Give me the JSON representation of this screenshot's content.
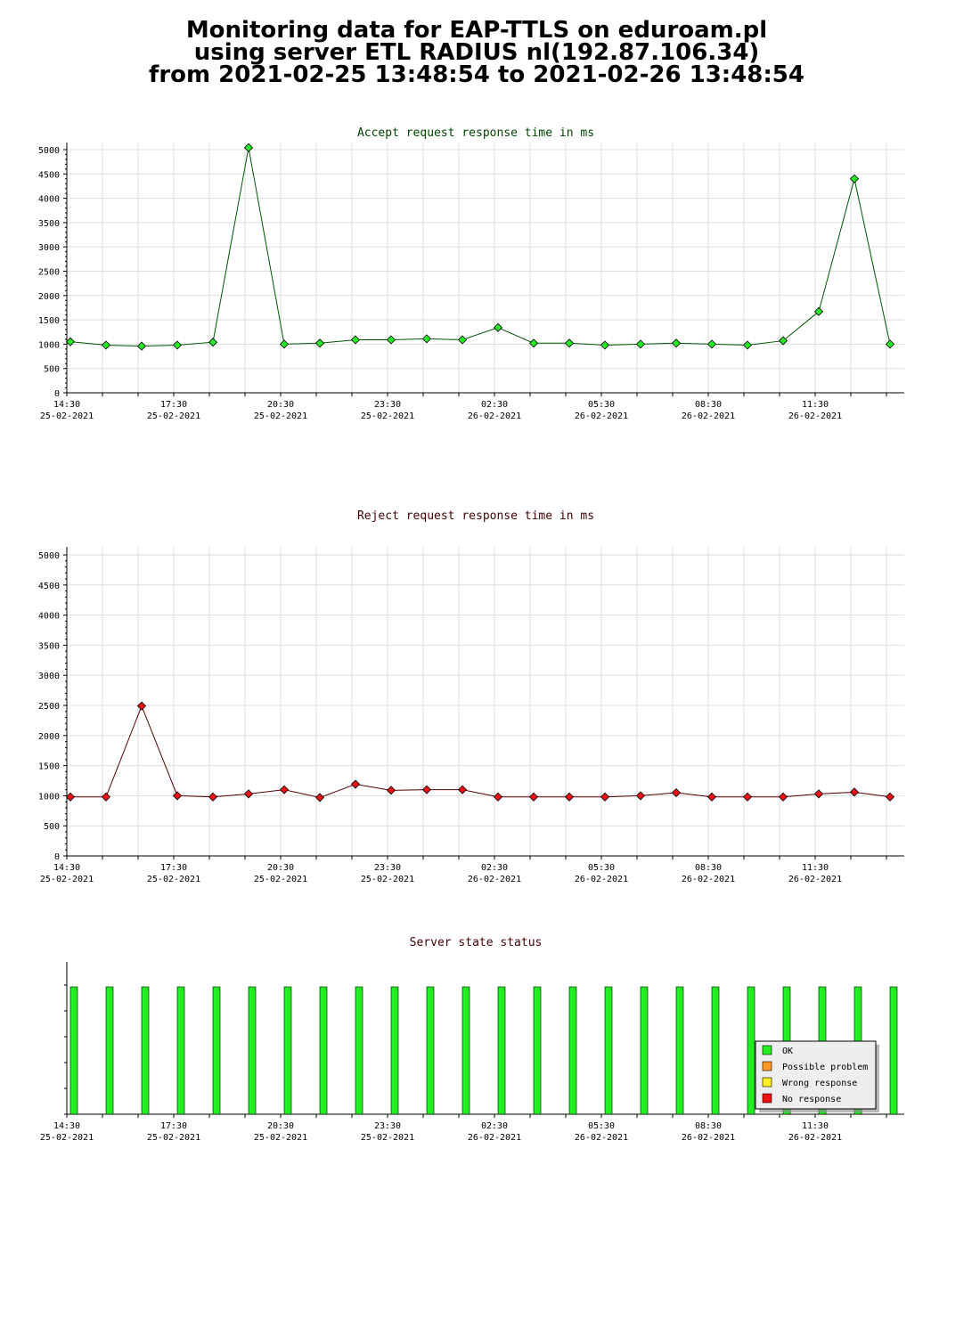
{
  "page": {
    "title_lines": [
      "Monitoring data for EAP-TTLS on eduroam.pl",
      "using server ETL RADIUS nl(192.87.106.34)",
      "from 2021-02-25 13:48:54 to 2021-02-26 13:48:54"
    ]
  },
  "chart_data": [
    {
      "type": "line",
      "title": "Accept request response time in ms",
      "title_color": "#004400",
      "line_color": "#005500",
      "marker_color": "#22ee22",
      "ylim": [
        0,
        5000
      ],
      "yticks": [
        0,
        500,
        1000,
        1500,
        2000,
        2500,
        3000,
        3500,
        4000,
        4500,
        5000
      ],
      "grid": true,
      "x_tick_labels": [
        {
          "time": "14:30",
          "date": "25-02-2021"
        },
        {
          "time": "17:30",
          "date": "25-02-2021"
        },
        {
          "time": "20:30",
          "date": "25-02-2021"
        },
        {
          "time": "23:30",
          "date": "25-02-2021"
        },
        {
          "time": "02:30",
          "date": "26-02-2021"
        },
        {
          "time": "05:30",
          "date": "26-02-2021"
        },
        {
          "time": "08:30",
          "date": "26-02-2021"
        },
        {
          "time": "11:30",
          "date": "26-02-2021"
        }
      ],
      "values": [
        1050,
        980,
        960,
        980,
        1040,
        5040,
        1000,
        1020,
        1090,
        1090,
        1110,
        1090,
        1340,
        1020,
        1020,
        980,
        1000,
        1020,
        1000,
        980,
        1070,
        1670,
        4400,
        1000
      ]
    },
    {
      "type": "line",
      "title": "Reject request response time in ms",
      "title_color": "#440000",
      "line_color": "#550000",
      "marker_color": "#ee1111",
      "ylim": [
        0,
        5000
      ],
      "yticks": [
        0,
        500,
        1000,
        1500,
        2000,
        2500,
        3000,
        3500,
        4000,
        4500,
        5000
      ],
      "grid": true,
      "x_tick_labels": [
        {
          "time": "14:30",
          "date": "25-02-2021"
        },
        {
          "time": "17:30",
          "date": "25-02-2021"
        },
        {
          "time": "20:30",
          "date": "25-02-2021"
        },
        {
          "time": "23:30",
          "date": "25-02-2021"
        },
        {
          "time": "02:30",
          "date": "26-02-2021"
        },
        {
          "time": "05:30",
          "date": "26-02-2021"
        },
        {
          "time": "08:30",
          "date": "26-02-2021"
        },
        {
          "time": "11:30",
          "date": "26-02-2021"
        }
      ],
      "values": [
        980,
        980,
        2490,
        1000,
        980,
        1030,
        1100,
        970,
        1190,
        1090,
        1100,
        1100,
        980,
        980,
        980,
        980,
        1000,
        1050,
        980,
        980,
        980,
        1030,
        1060,
        980
      ]
    },
    {
      "type": "bar",
      "title": "Server state status",
      "title_color": "#440000",
      "grid": false,
      "x_tick_labels": [
        {
          "time": "14:30",
          "date": "25-02-2021"
        },
        {
          "time": "17:30",
          "date": "25-02-2021"
        },
        {
          "time": "20:30",
          "date": "25-02-2021"
        },
        {
          "time": "23:30",
          "date": "25-02-2021"
        },
        {
          "time": "02:30",
          "date": "26-02-2021"
        },
        {
          "time": "05:30",
          "date": "26-02-2021"
        },
        {
          "time": "08:30",
          "date": "26-02-2021"
        },
        {
          "time": "11:30",
          "date": "26-02-2021"
        }
      ],
      "legend_position": "bottom-right",
      "legend": [
        {
          "label": "OK",
          "color": "#22ee22"
        },
        {
          "label": "Possible problem",
          "color": "#ff9922"
        },
        {
          "label": "Wrong response",
          "color": "#ffee22"
        },
        {
          "label": "No response",
          "color": "#ee1111"
        }
      ],
      "status_values": [
        "OK",
        "OK",
        "OK",
        "OK",
        "OK",
        "OK",
        "OK",
        "OK",
        "OK",
        "OK",
        "OK",
        "OK",
        "OK",
        "OK",
        "OK",
        "OK",
        "OK",
        "OK",
        "OK",
        "OK",
        "OK",
        "OK",
        "OK",
        "OK"
      ]
    }
  ]
}
